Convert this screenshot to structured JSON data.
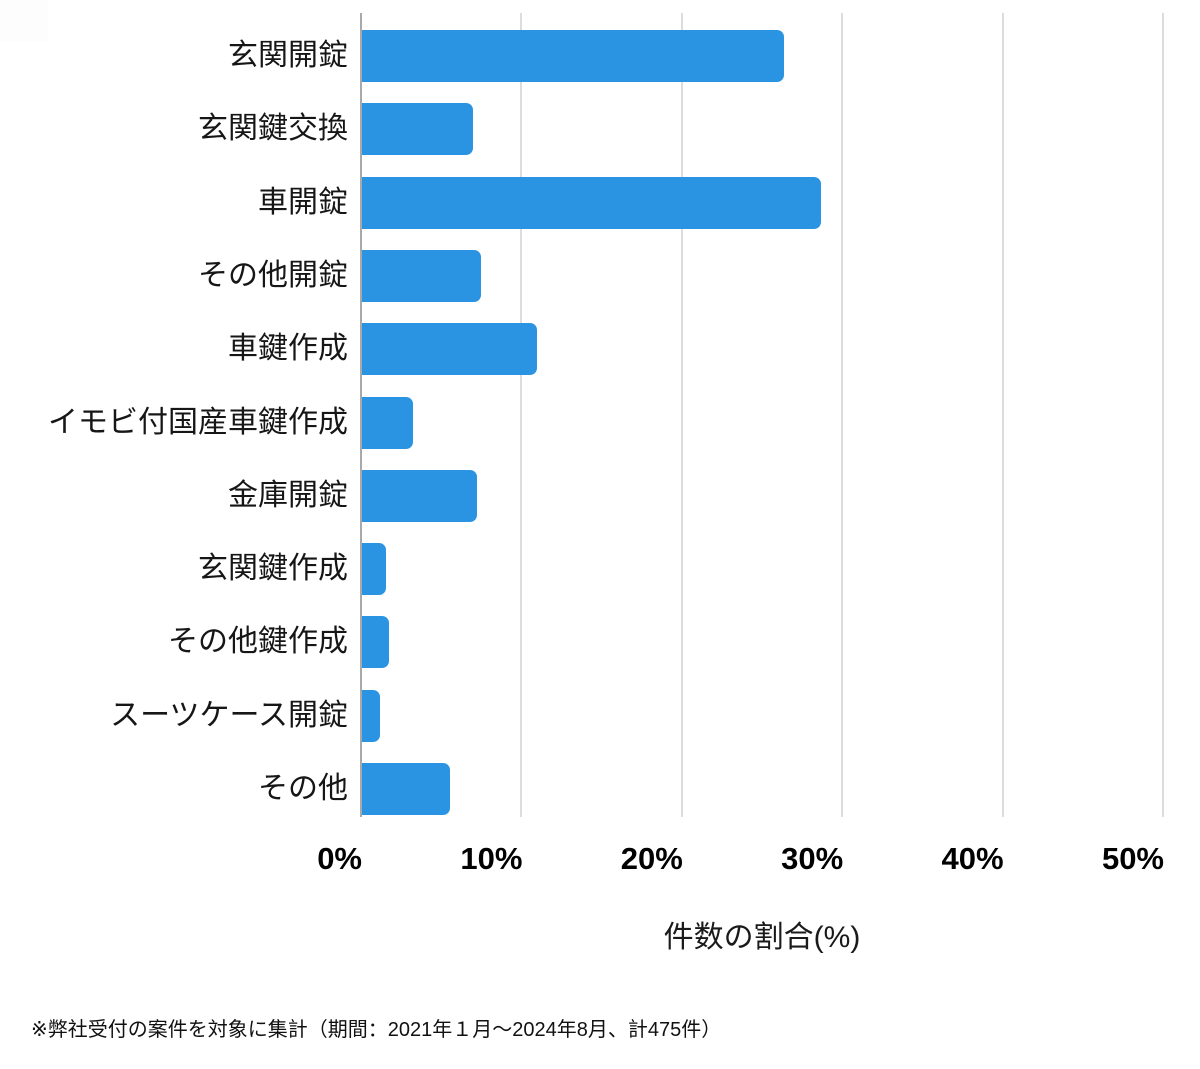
{
  "chart_data": {
    "type": "bar",
    "orientation": "horizontal",
    "title": "",
    "categories": [
      "玄関開錠",
      "玄関鍵交換",
      "車開錠",
      "その他開錠",
      "車鍵作成",
      "イモビ付国産車鍵作成",
      "金庫開錠",
      "玄関鍵作成",
      "その他鍵作成",
      "スーツケース開錠",
      "その他"
    ],
    "values": [
      26.3,
      6.9,
      28.6,
      7.4,
      10.9,
      3.2,
      7.2,
      1.5,
      1.7,
      1.1,
      5.5
    ],
    "xlabel": "件数の割合(%)",
    "ylabel": "",
    "xlim": [
      0,
      50
    ],
    "xtick_labels": [
      "0%",
      "10%",
      "20%",
      "30%",
      "40%",
      "50%"
    ],
    "xtick_values": [
      0,
      10,
      20,
      30,
      40,
      50
    ],
    "grid": true,
    "legend": false,
    "bar_color": "#2b94e2"
  },
  "footnote": "※弊社受付の案件を対象に集計（期間：2021年１月～2024年8月、計475件）",
  "colors": {
    "bar": "#2b94e2",
    "gridline": "#dcdcdc",
    "axis_line": "#a9a9a9",
    "label_text": "#161616",
    "tick_text": "#000000"
  }
}
